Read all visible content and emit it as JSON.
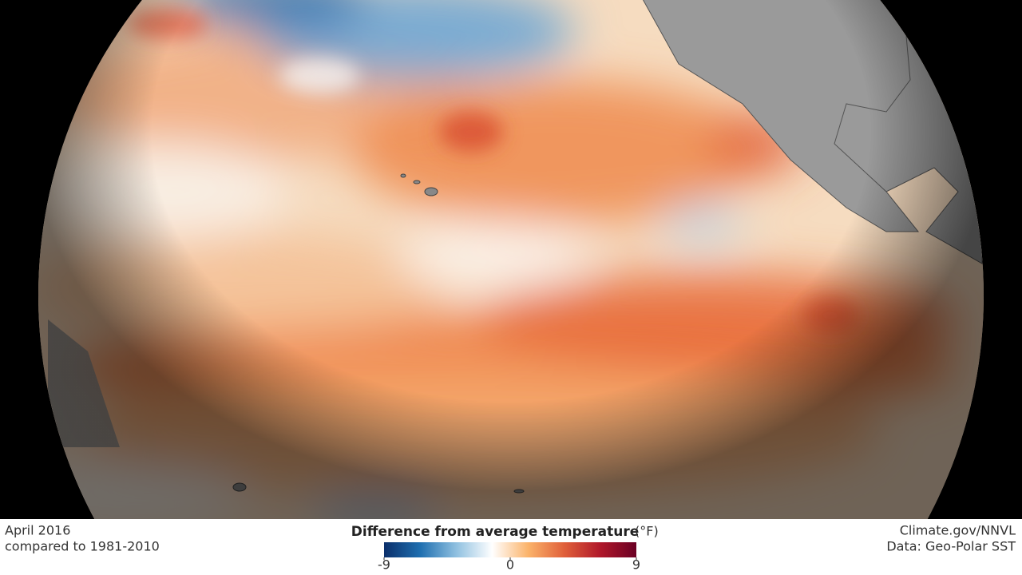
{
  "caption": {
    "date": "April 2016",
    "baseline": "compared to 1981-2010"
  },
  "legend": {
    "title": "Difference from average temperature",
    "unit": "(°F)",
    "range": [
      -9,
      9
    ],
    "ticks": [
      -9,
      0,
      9
    ],
    "colors": [
      "#0b2f6b",
      "#1f6fb0",
      "#8fc0e0",
      "#ffffff",
      "#fbb36a",
      "#e0603a",
      "#b0182a",
      "#6a0024"
    ]
  },
  "credits": {
    "source": "Climate.gov/NNVL",
    "data": "Data: Geo-Polar SST"
  }
}
